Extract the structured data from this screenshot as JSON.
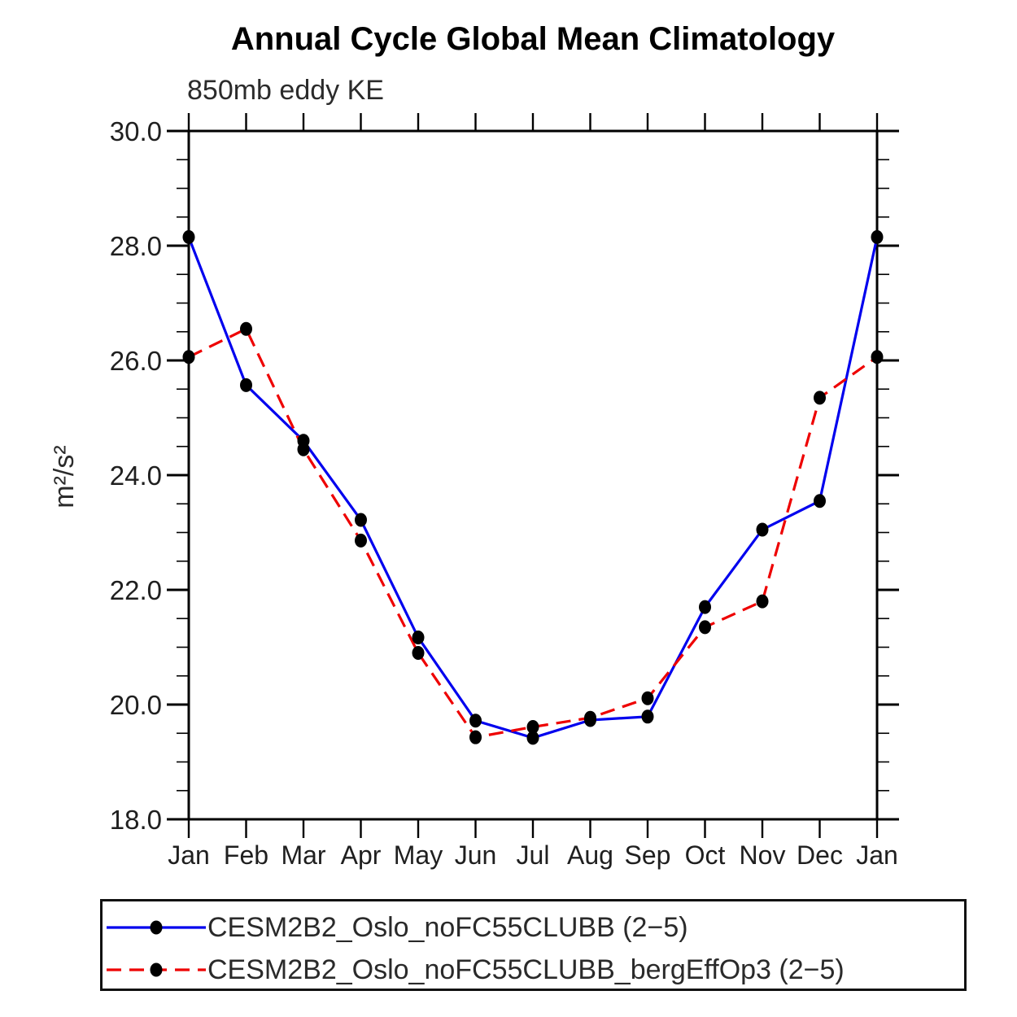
{
  "chart_data": {
    "type": "line",
    "title": "Annual Cycle Global Mean Climatology",
    "subtitle": "850mb eddy KE",
    "ylabel": "m²/s²",
    "xlabel": "",
    "categories": [
      "Jan",
      "Feb",
      "Mar",
      "Apr",
      "May",
      "Jun",
      "Jul",
      "Aug",
      "Sep",
      "Oct",
      "Nov",
      "Dec",
      "Jan"
    ],
    "ylim": [
      18.0,
      30.0
    ],
    "ytick_major_interval": 2.0,
    "ytick_minor_interval": 0.5,
    "ytick_labels": [
      "18.0",
      "20.0",
      "22.0",
      "24.0",
      "26.0",
      "28.0",
      "30.0"
    ],
    "grid": "off",
    "legend_position": "bottom",
    "frame_color": "#000000",
    "marker_color": "#000000",
    "series": [
      {
        "name": "CESM2B2_Oslo_noFC55CLUBB (2−5)",
        "color": "#0000ee",
        "style": "solid",
        "values": [
          28.15,
          25.57,
          24.6,
          23.22,
          21.17,
          19.72,
          19.42,
          19.73,
          19.79,
          21.7,
          23.05,
          23.55,
          28.15
        ]
      },
      {
        "name": "CESM2B2_Oslo_noFC55CLUBB_bergEffOp3 (2−5)",
        "color": "#ee0000",
        "style": "dashed",
        "values": [
          26.06,
          26.55,
          24.45,
          22.86,
          20.9,
          19.43,
          19.61,
          19.77,
          20.11,
          21.35,
          21.8,
          25.35,
          26.06
        ]
      }
    ]
  }
}
